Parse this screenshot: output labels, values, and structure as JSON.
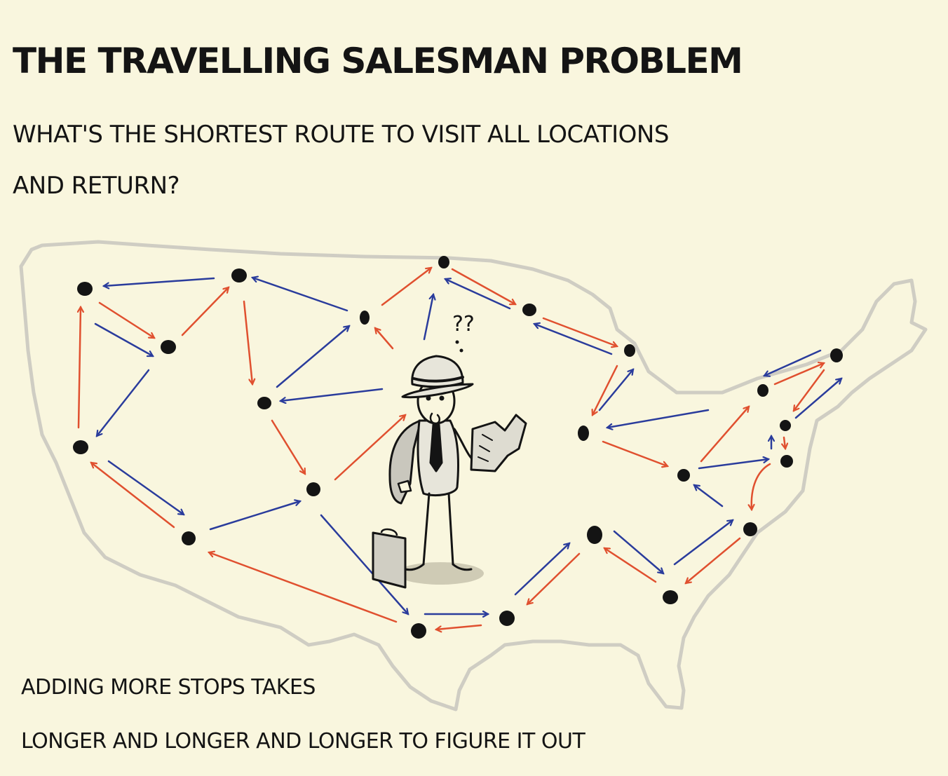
{
  "title": "THE TRAVELLiNG SALESMAN PROBLEM",
  "subtitle": {
    "line1": "WHAT'S THE SHORTEST ROUTE TO ViSiT ALL LOCATiONS",
    "line2": "AND RETURN?"
  },
  "figure": {
    "question_marks": "??"
  },
  "footer": {
    "line1": "ADDiNG MORE STOPS TAKES",
    "line2": "LONGER AND LONGER AND LONGER TO FiGURE iT OUT"
  },
  "colors": {
    "background": "#f9f6de",
    "map_outline": "#cfcdc3",
    "stop": "#141414",
    "arrow_red": "#e0502f",
    "arrow_blue": "#2a3c9c"
  }
}
